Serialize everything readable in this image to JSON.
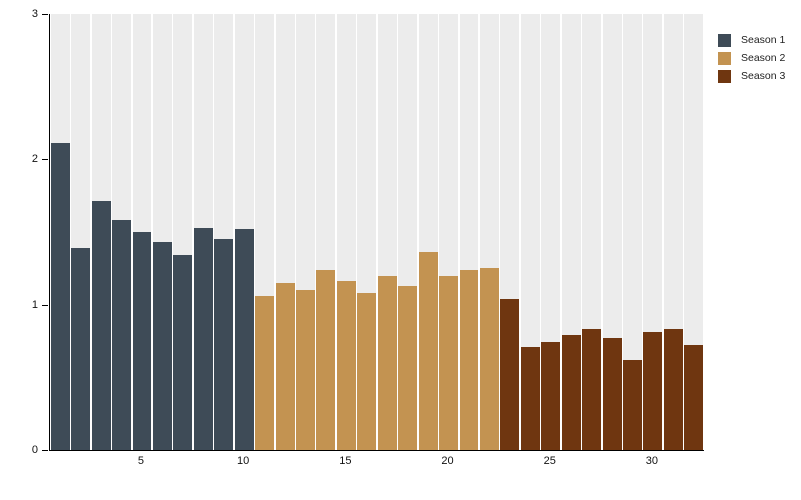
{
  "chart_data": {
    "type": "bar",
    "title": "",
    "xlabel": "",
    "ylabel": "",
    "x_unit": "episode_number",
    "xlim": [
      1,
      32
    ],
    "ylim": [
      0,
      3
    ],
    "yticks": [
      0,
      1,
      2,
      3
    ],
    "xticks": [
      5,
      10,
      15,
      20,
      25,
      30
    ],
    "grid": false,
    "background_bands": true,
    "band_color": "#ececec",
    "axis_color": "#000000",
    "legend_position": "top-right",
    "series": [
      {
        "name": "Season 1",
        "color": "#3e4b57",
        "episodes": [
          1,
          2,
          3,
          4,
          5,
          6,
          7,
          8,
          9,
          10
        ],
        "values": [
          2.11,
          1.39,
          1.71,
          1.58,
          1.5,
          1.43,
          1.34,
          1.53,
          1.45,
          1.52
        ]
      },
      {
        "name": "Season 2",
        "color": "#c39351",
        "episodes": [
          11,
          12,
          13,
          14,
          15,
          16,
          17,
          18,
          19,
          20,
          21,
          22
        ],
        "values": [
          1.06,
          1.15,
          1.1,
          1.24,
          1.16,
          1.08,
          1.2,
          1.13,
          1.36,
          1.2,
          1.24,
          1.25
        ]
      },
      {
        "name": "Season 3",
        "color": "#6f3610",
        "episodes": [
          23,
          24,
          25,
          26,
          27,
          28,
          29,
          30,
          31,
          32
        ],
        "values": [
          1.04,
          0.71,
          0.74,
          0.79,
          0.83,
          0.77,
          0.62,
          0.81,
          0.83,
          0.72
        ]
      }
    ]
  }
}
